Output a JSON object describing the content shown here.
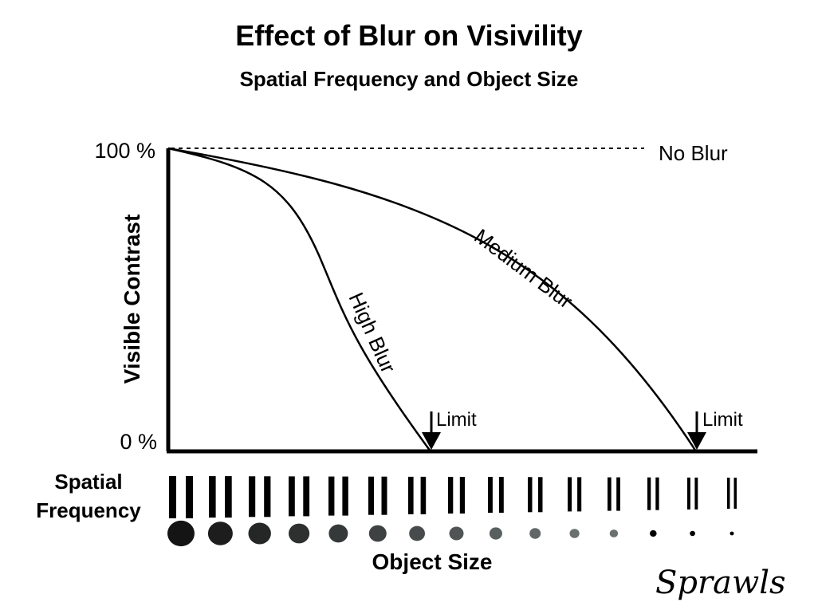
{
  "title": "Effect of Blur on Visivility",
  "subtitle": "Spatial Frequency and Object Size",
  "axis": {
    "y_label": "Visible Contrast",
    "y_top_tick": "100 %",
    "y_bottom_tick": "0 %"
  },
  "curves": {
    "no_blur": "No Blur",
    "medium_blur": "Medium Blur",
    "high_blur": "High Blur"
  },
  "limit_label": "Limit",
  "spatial_frequency_label": [
    "Spatial",
    "Frequency"
  ],
  "object_size_label": "Object Size",
  "signature": "Sprawls",
  "colors": {
    "ink": "#000000",
    "dot_dark": "#141414",
    "dot_light": "#6a7070"
  }
}
